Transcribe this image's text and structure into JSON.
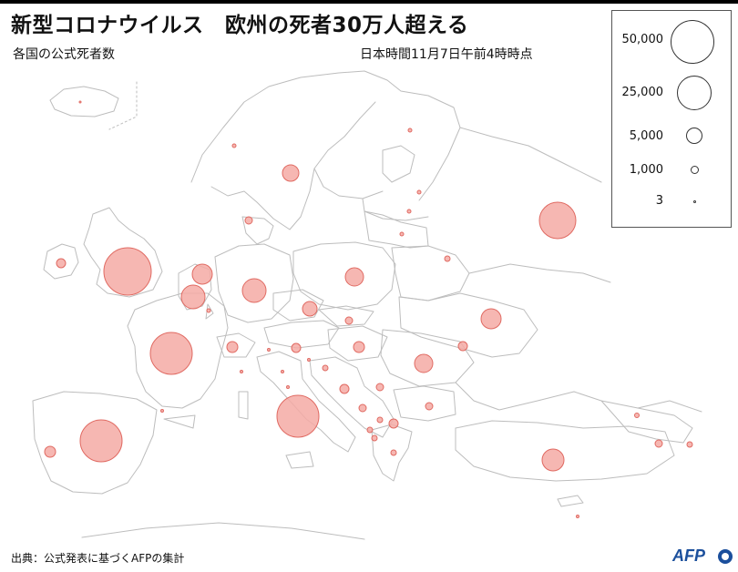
{
  "header": {
    "title": "新型コロナウイルス　欧州の死者30万人超える",
    "subtitle": "各国の公式死者数",
    "timestamp": "日本時間11月7日午前4時時点"
  },
  "legend": {
    "items": [
      {
        "label": "50,000",
        "value": 50000
      },
      {
        "label": "25,000",
        "value": 25000
      },
      {
        "label": "5,000",
        "value": 5000
      },
      {
        "label": "1,000",
        "value": 1000
      },
      {
        "label": "3",
        "value": 3
      }
    ]
  },
  "footer": {
    "source": "出典：公式発表に基づくAFPの集計",
    "logo_text": "AFP"
  },
  "colors": {
    "bubble_fill": "#f4aaa4",
    "bubble_stroke": "#e06a62",
    "border_line": "#bdbdbd"
  }
}
